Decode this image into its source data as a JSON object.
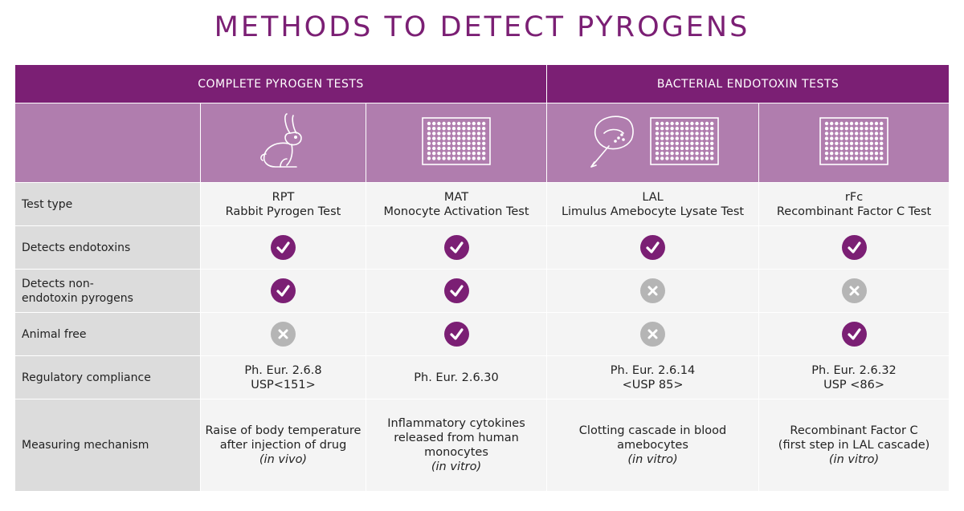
{
  "title": "METHODS TO DETECT PYROGENS",
  "groups": {
    "complete": "COMPLETE PYROGEN TESTS",
    "bacterial": "BACTERIAL ENDOTOXIN TESTS"
  },
  "colors": {
    "brand_purple": "#7b1f74",
    "icon_row": "#b07dae",
    "label_bg": "#dcdcdc",
    "value_bg": "#f4f4f4",
    "no_grey": "#b5b5b5"
  },
  "icons": {
    "rpt": "rabbit-icon",
    "mat": "well-plate-icon",
    "lal": [
      "horseshoe-crab-icon",
      "well-plate-icon"
    ],
    "rfc": "well-plate-icon"
  },
  "rows": {
    "test_type": {
      "label": "Test type",
      "rpt": [
        "RPT",
        "Rabbit Pyrogen Test"
      ],
      "mat": [
        "MAT",
        "Monocyte Activation Test"
      ],
      "lal": [
        "LAL",
        "Limulus Amebocyte Lysate Test"
      ],
      "rfc": [
        "rFc",
        "Recombinant Factor C Test"
      ]
    },
    "endotoxins": {
      "label": "Detects endotoxins",
      "rpt": "yes",
      "mat": "yes",
      "lal": "yes",
      "rfc": "yes"
    },
    "non_endotoxin": {
      "label": "Detects non-endotoxin pyrogens",
      "rpt": "yes",
      "mat": "yes",
      "lal": "no",
      "rfc": "no"
    },
    "animal_free": {
      "label": "Animal free",
      "rpt": "no",
      "mat": "yes",
      "lal": "no",
      "rfc": "yes"
    },
    "regulatory": {
      "label": "Regulatory compliance",
      "rpt": [
        "Ph. Eur. 2.6.8",
        "USP<151>"
      ],
      "mat": [
        "Ph. Eur. 2.6.30"
      ],
      "lal": [
        "Ph. Eur. 2.6.14",
        "<USP 85>"
      ],
      "rfc": [
        "Ph. Eur. 2.6.32",
        "USP <86>"
      ]
    },
    "mechanism": {
      "label": "Measuring mechanism",
      "rpt": {
        "lines": [
          "Raise of body temperature",
          "after injection of drug"
        ],
        "note": "(in vivo)"
      },
      "mat": {
        "lines": [
          "Inflammatory cytokines",
          "released from human",
          "monocytes"
        ],
        "note": "(in vitro)"
      },
      "lal": {
        "lines": [
          "Clotting cascade in blood",
          "amebocytes"
        ],
        "note": "(in vitro)"
      },
      "rfc": {
        "lines": [
          "Recombinant Factor C",
          "(first step in LAL cascade)"
        ],
        "note": "(in vitro)"
      }
    }
  }
}
